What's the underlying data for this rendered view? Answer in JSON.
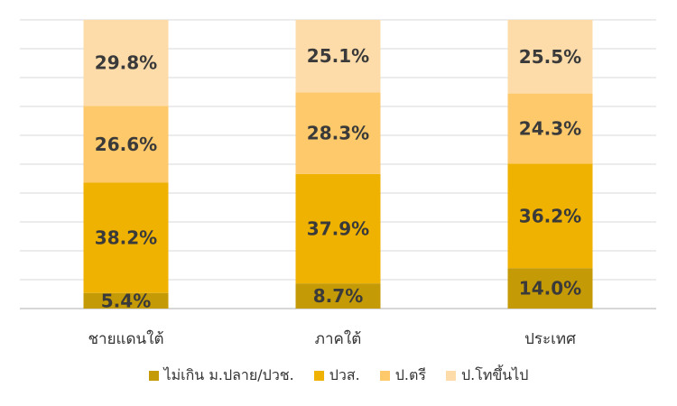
{
  "chart_data": {
    "type": "bar",
    "stacked": true,
    "categories": [
      "ชายแดนใต้",
      "ภาคใต้",
      "ประเทศ"
    ],
    "series": [
      {
        "name": "ไม่เกิน ม.ปลาย/ปวช.",
        "color": "#c49a06",
        "values": [
          5.4,
          8.7,
          14.0
        ],
        "labels": [
          "5.4%",
          "8.7%",
          "14.0%"
        ]
      },
      {
        "name": "ปวส.",
        "color": "#efb200",
        "values": [
          38.2,
          37.9,
          36.2
        ],
        "labels": [
          "38.2%",
          "37.9%",
          "36.2%"
        ]
      },
      {
        "name": "ป.ตรี",
        "color": "#fdc96a",
        "values": [
          26.6,
          28.3,
          24.3
        ],
        "labels": [
          "26.6%",
          "28.3%",
          "24.3%"
        ]
      },
      {
        "name": "ป.โทขึ้นไป",
        "color": "#fddcaa",
        "values": [
          29.8,
          25.1,
          25.5
        ],
        "labels": [
          "29.8%",
          "25.1%",
          "25.5%"
        ]
      }
    ],
    "ylim": [
      0,
      100
    ],
    "grid": true,
    "legend_position": "bottom"
  }
}
